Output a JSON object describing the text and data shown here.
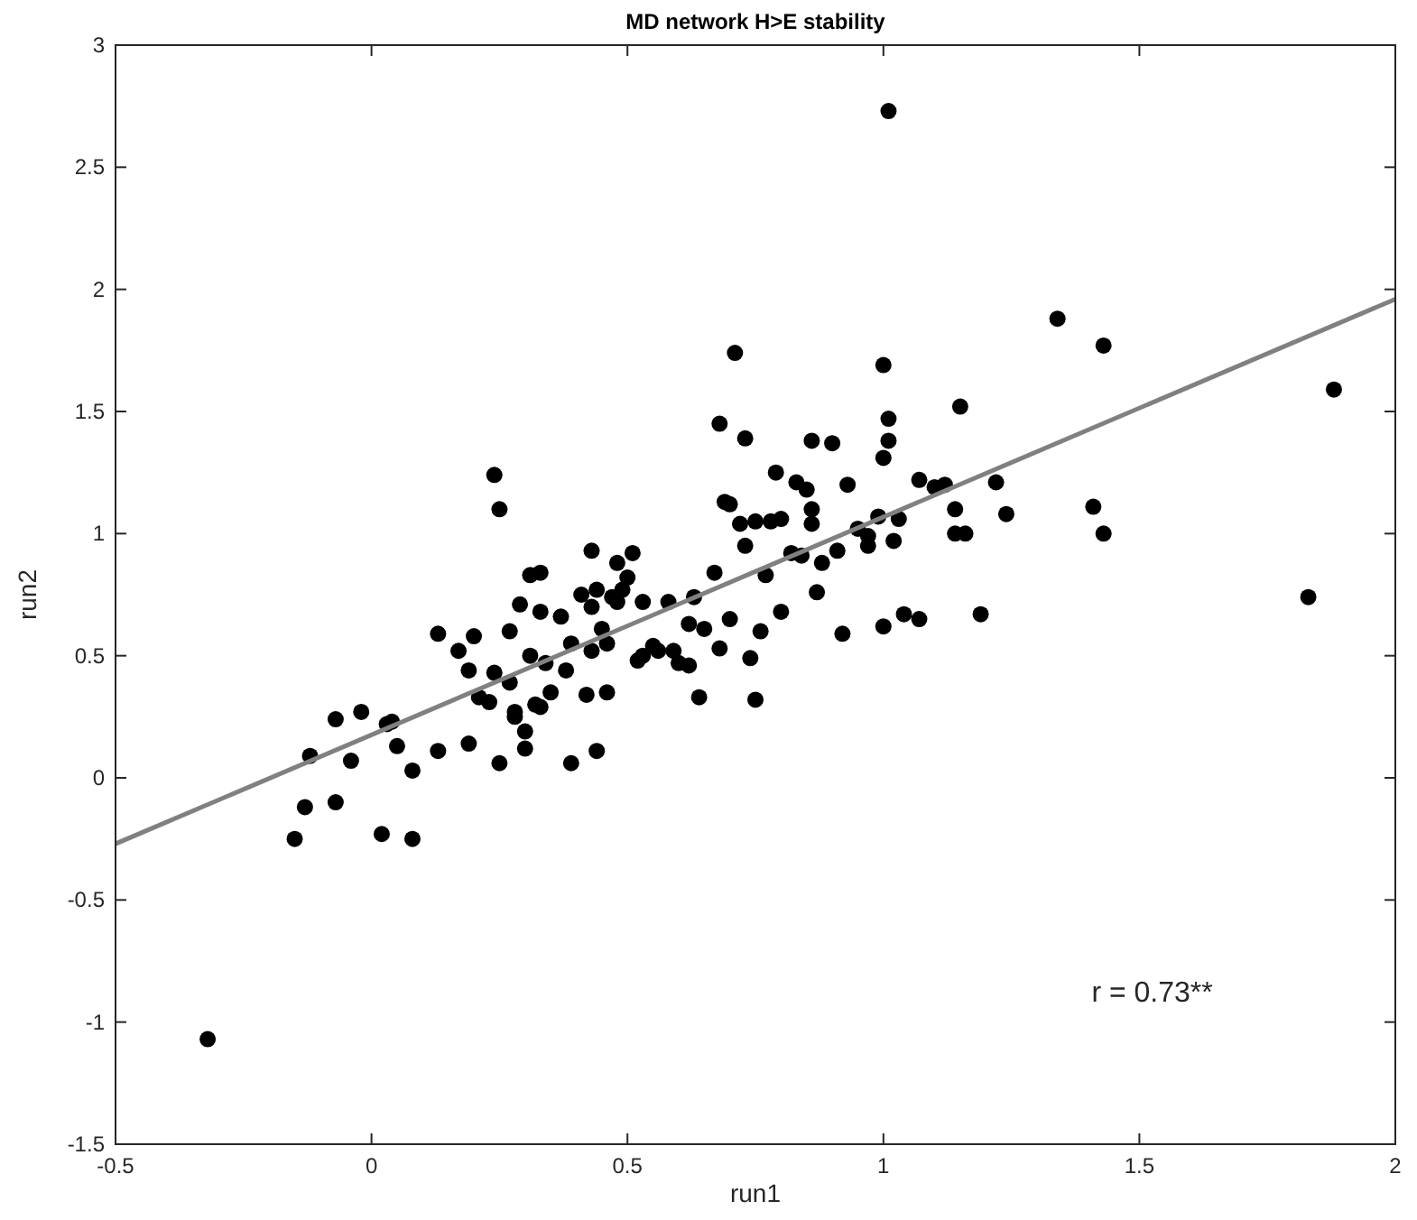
{
  "chart_data": {
    "type": "scatter",
    "title": "MD network H>E stability",
    "xlabel": "run1",
    "ylabel": "run2",
    "xlim": [
      -0.5,
      2
    ],
    "xticks": [
      -0.5,
      0,
      0.5,
      1,
      1.5,
      2
    ],
    "ylim": [
      -1.5,
      3
    ],
    "yticks": [
      -1.5,
      -1,
      -0.5,
      0,
      0.5,
      1,
      1.5,
      2,
      2.5,
      3
    ],
    "grid": false,
    "annotations": [
      "r = 0.73**"
    ],
    "series": [
      {
        "color": "#000000",
        "marker": "circle",
        "x": [
          -0.32,
          -0.15,
          -0.13,
          -0.12,
          -0.07,
          -0.07,
          -0.04,
          -0.02,
          0.02,
          0.03,
          0.04,
          0.05,
          0.08,
          0.08,
          0.13,
          0.13,
          0.17,
          0.19,
          0.19,
          0.2,
          0.21,
          0.23,
          0.24,
          0.25,
          0.24,
          0.25,
          0.27,
          0.27,
          0.28,
          0.28,
          0.29,
          0.3,
          0.3,
          0.31,
          0.31,
          0.32,
          0.33,
          0.33,
          0.33,
          0.34,
          0.35,
          0.37,
          0.38,
          0.39,
          0.39,
          0.41,
          0.42,
          0.43,
          0.43,
          0.43,
          0.44,
          0.44,
          0.45,
          0.46,
          0.46,
          0.47,
          0.48,
          0.48,
          0.49,
          0.5,
          0.51,
          0.52,
          0.53,
          0.53,
          0.55,
          0.56,
          0.58,
          0.59,
          0.6,
          0.62,
          0.62,
          0.63,
          0.64,
          0.65,
          0.67,
          0.68,
          0.68,
          0.69,
          0.7,
          0.7,
          0.71,
          0.72,
          0.73,
          0.73,
          0.74,
          0.75,
          0.75,
          0.76,
          0.77,
          0.78,
          0.79,
          0.8,
          0.8,
          0.82,
          0.83,
          0.84,
          0.85,
          0.86,
          0.86,
          0.86,
          0.87,
          0.88,
          0.9,
          0.91,
          0.92,
          0.93,
          0.95,
          0.97,
          0.97,
          0.99,
          1.0,
          1.0,
          1.0,
          1.01,
          1.01,
          1.01,
          1.02,
          1.03,
          1.04,
          1.07,
          1.07,
          1.1,
          1.12,
          1.14,
          1.14,
          1.15,
          1.16,
          1.19,
          1.22,
          1.24,
          1.34,
          1.41,
          1.43,
          1.43,
          1.83,
          1.88
        ],
        "values": [
          -1.07,
          -0.25,
          -0.12,
          0.09,
          0.24,
          -0.1,
          0.07,
          0.27,
          -0.23,
          0.22,
          0.23,
          0.13,
          -0.25,
          0.03,
          0.11,
          0.59,
          0.52,
          0.44,
          0.14,
          0.58,
          0.33,
          0.31,
          1.24,
          1.1,
          0.43,
          0.06,
          0.39,
          0.6,
          0.25,
          0.27,
          0.71,
          0.19,
          0.12,
          0.83,
          0.5,
          0.3,
          0.29,
          0.84,
          0.68,
          0.47,
          0.35,
          0.66,
          0.44,
          0.55,
          0.06,
          0.75,
          0.34,
          0.93,
          0.7,
          0.52,
          0.11,
          0.77,
          0.61,
          0.35,
          0.55,
          0.74,
          0.88,
          0.72,
          0.77,
          0.82,
          0.92,
          0.48,
          0.72,
          0.5,
          0.54,
          0.52,
          0.72,
          0.52,
          0.47,
          0.63,
          0.46,
          0.74,
          0.33,
          0.61,
          0.84,
          0.53,
          1.45,
          1.13,
          1.12,
          0.65,
          1.74,
          1.04,
          0.95,
          1.39,
          0.49,
          1.05,
          0.32,
          0.6,
          0.83,
          1.05,
          1.25,
          1.06,
          0.68,
          0.92,
          1.21,
          0.91,
          1.18,
          1.1,
          1.04,
          1.38,
          0.76,
          0.88,
          1.37,
          0.93,
          0.59,
          1.2,
          1.02,
          0.99,
          0.95,
          1.07,
          1.69,
          1.31,
          0.62,
          1.47,
          1.38,
          2.73,
          0.97,
          1.06,
          0.67,
          0.65,
          1.22,
          1.19,
          1.2,
          1.1,
          1.0,
          1.52,
          1.0,
          0.67,
          1.21,
          1.08,
          1.88,
          1.11,
          1.77,
          1.0,
          0.74,
          1.59
        ]
      },
      {
        "type": "line",
        "color": "#808080",
        "x": [
          -0.5,
          2
        ],
        "values": [
          -0.27,
          1.96
        ],
        "marker": "none",
        "line_style": "solid"
      }
    ]
  }
}
